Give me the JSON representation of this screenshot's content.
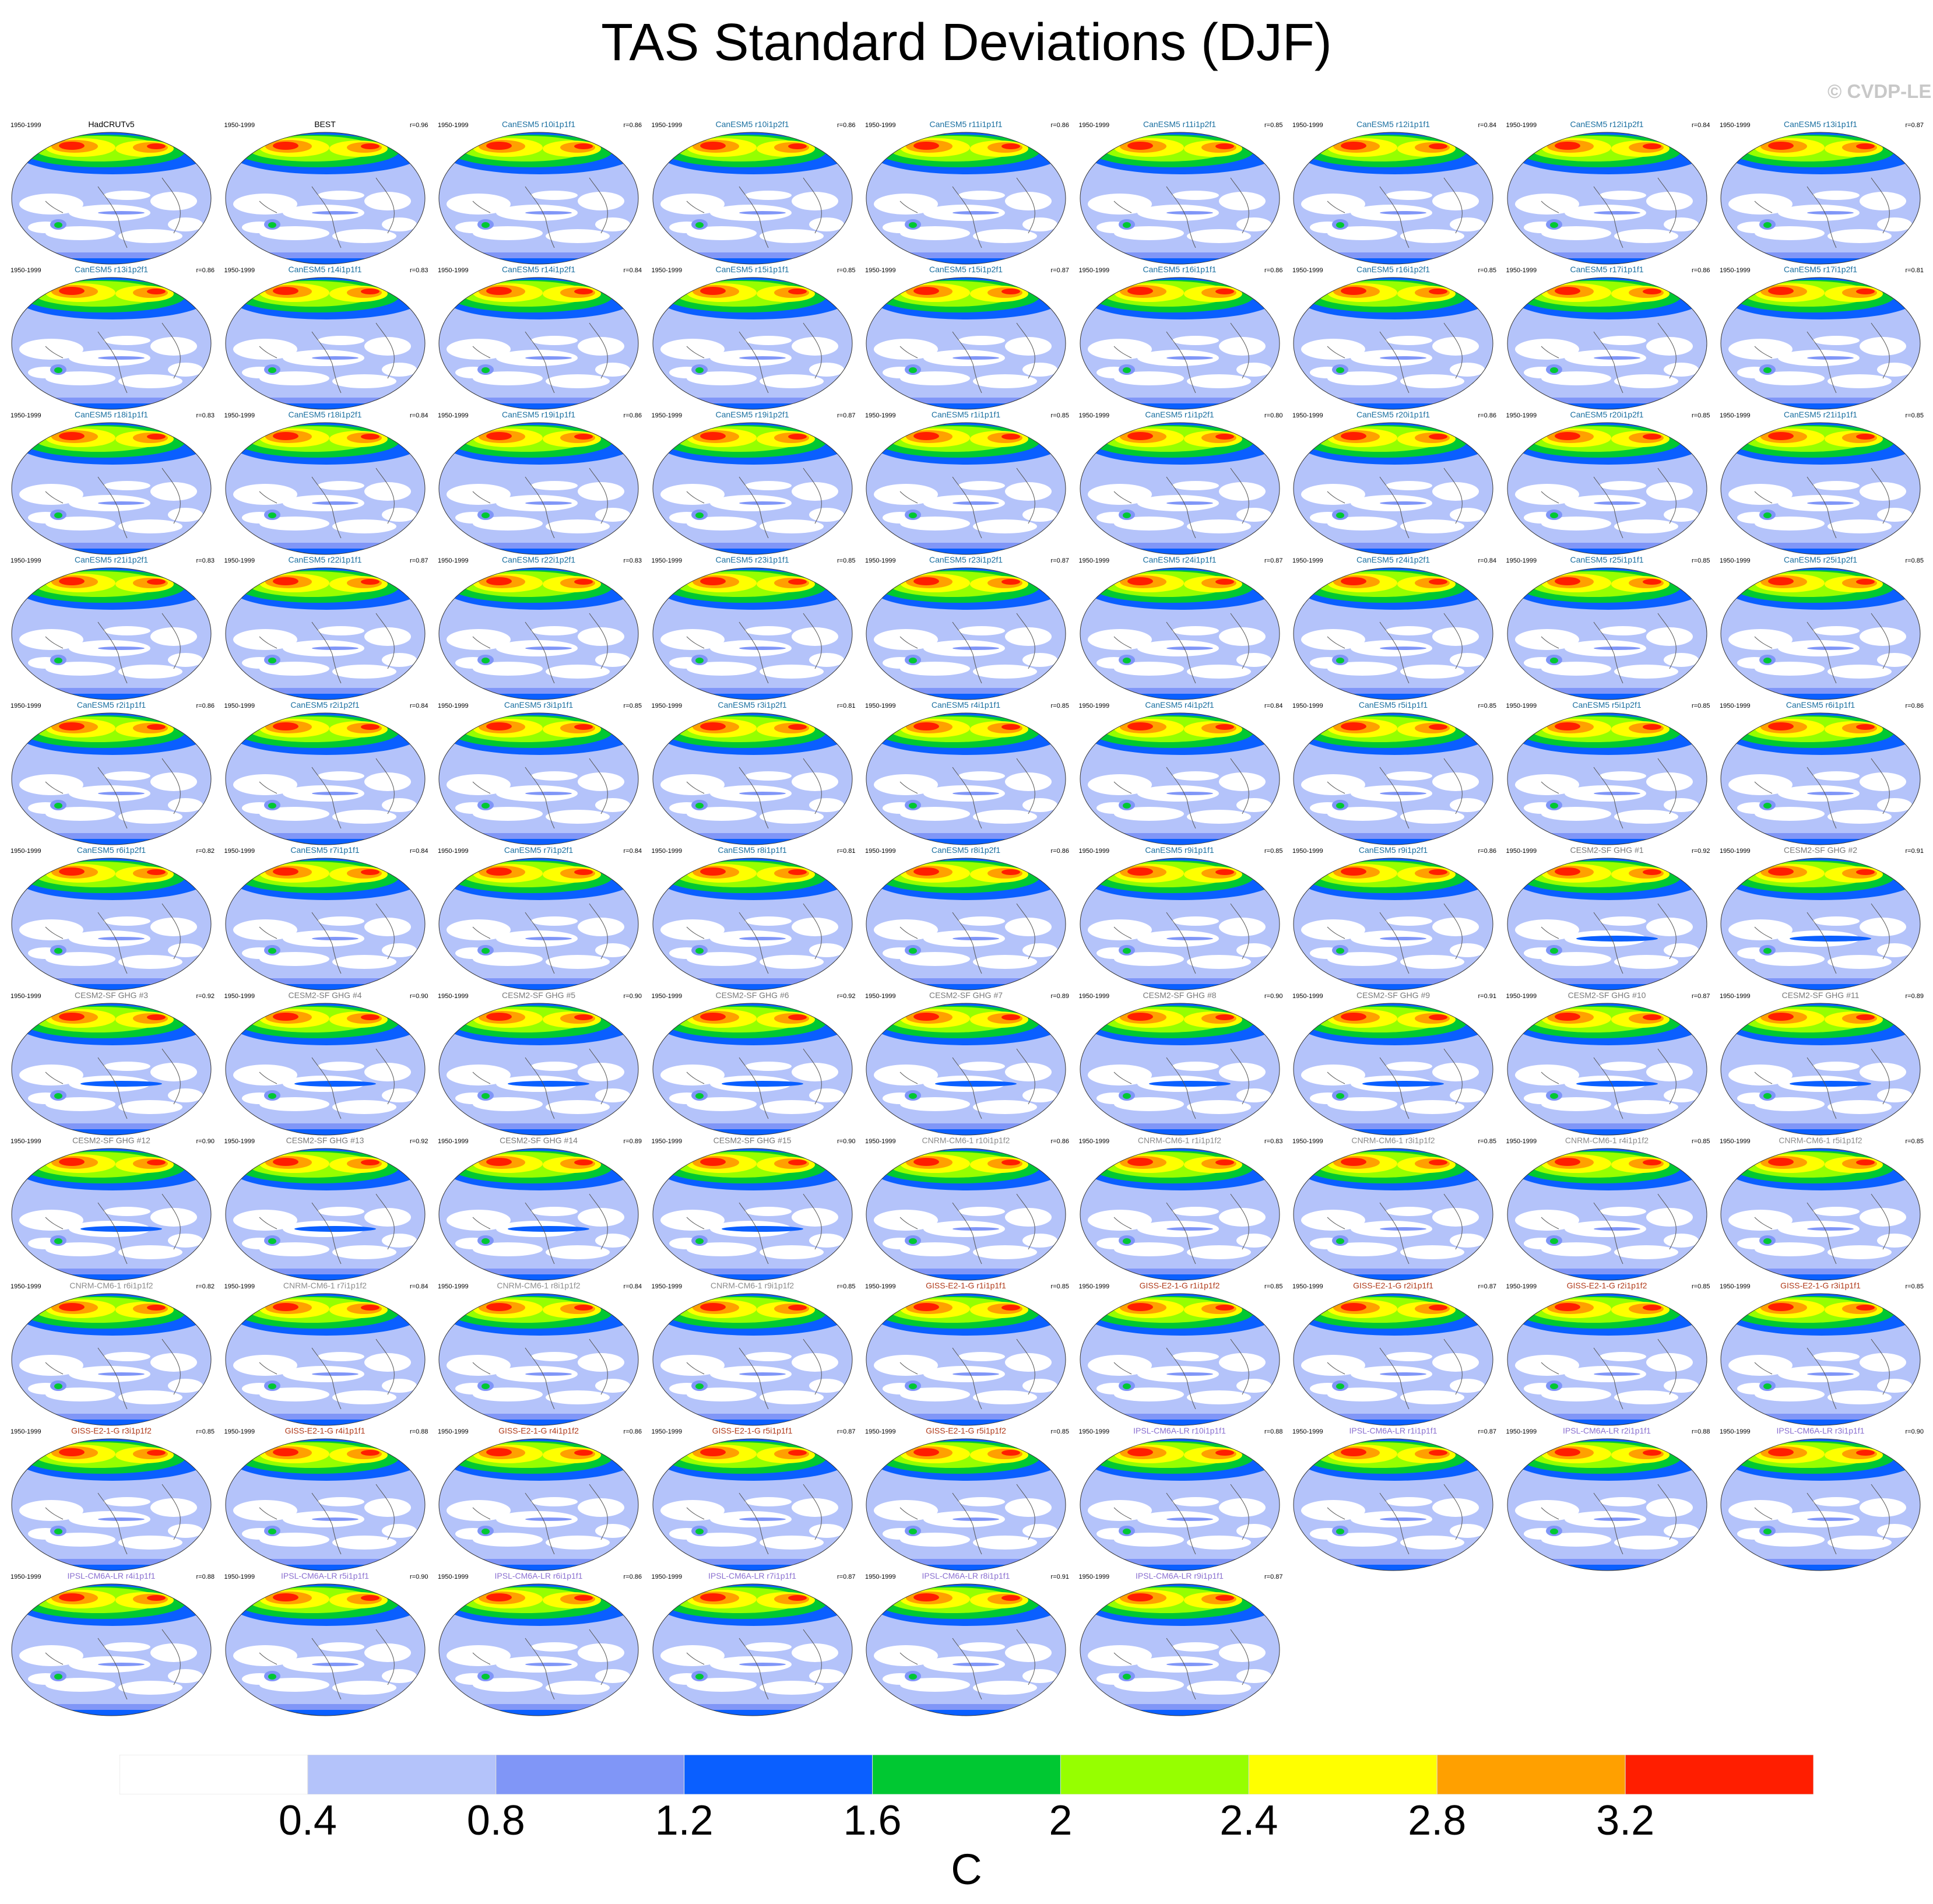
{
  "title": "TAS Standard Deviations (DJF)",
  "copyright": "© CVDP-LE",
  "units": "C",
  "colors": {
    "levels": [
      "#ffffff",
      "#b4c3fa",
      "#8096f7",
      "#0a5fff",
      "#00c832",
      "#96ff00",
      "#ffff00",
      "#ffa000",
      "#ff1e00"
    ],
    "land_outline": "#555555"
  },
  "colorbar": {
    "labels": [
      "0.4",
      "0.8",
      "1.2",
      "1.6",
      "2",
      "2.4",
      "2.8",
      "3.2"
    ]
  },
  "panels": [
    {
      "title": "HadCRUTv5",
      "period": "1950-1999",
      "corr": "",
      "color": "#000000"
    },
    {
      "title": "BEST",
      "period": "1950-1999",
      "corr": "r=0.96",
      "color": "#000000"
    },
    {
      "title": "CanESM5 r10i1p1f1",
      "period": "1950-1999",
      "corr": "r=0.86",
      "color": "#1a6fa0"
    },
    {
      "title": "CanESM5 r10i1p2f1",
      "period": "1950-1999",
      "corr": "r=0.86",
      "color": "#1a6fa0"
    },
    {
      "title": "CanESM5 r11i1p1f1",
      "period": "1950-1999",
      "corr": "r=0.86",
      "color": "#1a6fa0"
    },
    {
      "title": "CanESM5 r11i1p2f1",
      "period": "1950-1999",
      "corr": "r=0.85",
      "color": "#1a6fa0"
    },
    {
      "title": "CanESM5 r12i1p1f1",
      "period": "1950-1999",
      "corr": "r=0.84",
      "color": "#1a6fa0"
    },
    {
      "title": "CanESM5 r12i1p2f1",
      "period": "1950-1999",
      "corr": "r=0.84",
      "color": "#1a6fa0"
    },
    {
      "title": "CanESM5 r13i1p1f1",
      "period": "1950-1999",
      "corr": "r=0.87",
      "color": "#1a6fa0"
    },
    {
      "title": "CanESM5 r13i1p2f1",
      "period": "1950-1999",
      "corr": "r=0.86",
      "color": "#1a6fa0"
    },
    {
      "title": "CanESM5 r14i1p1f1",
      "period": "1950-1999",
      "corr": "r=0.83",
      "color": "#1a6fa0"
    },
    {
      "title": "CanESM5 r14i1p2f1",
      "period": "1950-1999",
      "corr": "r=0.84",
      "color": "#1a6fa0"
    },
    {
      "title": "CanESM5 r15i1p1f1",
      "period": "1950-1999",
      "corr": "r=0.85",
      "color": "#1a6fa0"
    },
    {
      "title": "CanESM5 r15i1p2f1",
      "period": "1950-1999",
      "corr": "r=0.87",
      "color": "#1a6fa0"
    },
    {
      "title": "CanESM5 r16i1p1f1",
      "period": "1950-1999",
      "corr": "r=0.86",
      "color": "#1a6fa0"
    },
    {
      "title": "CanESM5 r16i1p2f1",
      "period": "1950-1999",
      "corr": "r=0.85",
      "color": "#1a6fa0"
    },
    {
      "title": "CanESM5 r17i1p1f1",
      "period": "1950-1999",
      "corr": "r=0.86",
      "color": "#1a6fa0"
    },
    {
      "title": "CanESM5 r17i1p2f1",
      "period": "1950-1999",
      "corr": "r=0.81",
      "color": "#1a6fa0"
    },
    {
      "title": "CanESM5 r18i1p1f1",
      "period": "1950-1999",
      "corr": "r=0.83",
      "color": "#1a6fa0"
    },
    {
      "title": "CanESM5 r18i1p2f1",
      "period": "1950-1999",
      "corr": "r=0.84",
      "color": "#1a6fa0"
    },
    {
      "title": "CanESM5 r19i1p1f1",
      "period": "1950-1999",
      "corr": "r=0.86",
      "color": "#1a6fa0"
    },
    {
      "title": "CanESM5 r19i1p2f1",
      "period": "1950-1999",
      "corr": "r=0.87",
      "color": "#1a6fa0"
    },
    {
      "title": "CanESM5 r1i1p1f1",
      "period": "1950-1999",
      "corr": "r=0.85",
      "color": "#1a6fa0"
    },
    {
      "title": "CanESM5 r1i1p2f1",
      "period": "1950-1999",
      "corr": "r=0.80",
      "color": "#1a6fa0"
    },
    {
      "title": "CanESM5 r20i1p1f1",
      "period": "1950-1999",
      "corr": "r=0.86",
      "color": "#1a6fa0"
    },
    {
      "title": "CanESM5 r20i1p2f1",
      "period": "1950-1999",
      "corr": "r=0.85",
      "color": "#1a6fa0"
    },
    {
      "title": "CanESM5 r21i1p1f1",
      "period": "1950-1999",
      "corr": "r=0.85",
      "color": "#1a6fa0"
    },
    {
      "title": "CanESM5 r21i1p2f1",
      "period": "1950-1999",
      "corr": "r=0.83",
      "color": "#1a6fa0"
    },
    {
      "title": "CanESM5 r22i1p1f1",
      "period": "1950-1999",
      "corr": "r=0.87",
      "color": "#1a6fa0"
    },
    {
      "title": "CanESM5 r22i1p2f1",
      "period": "1950-1999",
      "corr": "r=0.83",
      "color": "#1a6fa0"
    },
    {
      "title": "CanESM5 r23i1p1f1",
      "period": "1950-1999",
      "corr": "r=0.85",
      "color": "#1a6fa0"
    },
    {
      "title": "CanESM5 r23i1p2f1",
      "period": "1950-1999",
      "corr": "r=0.87",
      "color": "#1a6fa0"
    },
    {
      "title": "CanESM5 r24i1p1f1",
      "period": "1950-1999",
      "corr": "r=0.87",
      "color": "#1a6fa0"
    },
    {
      "title": "CanESM5 r24i1p2f1",
      "period": "1950-1999",
      "corr": "r=0.84",
      "color": "#1a6fa0"
    },
    {
      "title": "CanESM5 r25i1p1f1",
      "period": "1950-1999",
      "corr": "r=0.85",
      "color": "#1a6fa0"
    },
    {
      "title": "CanESM5 r25i1p2f1",
      "period": "1950-1999",
      "corr": "r=0.85",
      "color": "#1a6fa0"
    },
    {
      "title": "CanESM5 r2i1p1f1",
      "period": "1950-1999",
      "corr": "r=0.86",
      "color": "#1a6fa0"
    },
    {
      "title": "CanESM5 r2i1p2f1",
      "period": "1950-1999",
      "corr": "r=0.84",
      "color": "#1a6fa0"
    },
    {
      "title": "CanESM5 r3i1p1f1",
      "period": "1950-1999",
      "corr": "r=0.85",
      "color": "#1a6fa0"
    },
    {
      "title": "CanESM5 r3i1p2f1",
      "period": "1950-1999",
      "corr": "r=0.81",
      "color": "#1a6fa0"
    },
    {
      "title": "CanESM5 r4i1p1f1",
      "period": "1950-1999",
      "corr": "r=0.85",
      "color": "#1a6fa0"
    },
    {
      "title": "CanESM5 r4i1p2f1",
      "period": "1950-1999",
      "corr": "r=0.84",
      "color": "#1a6fa0"
    },
    {
      "title": "CanESM5 r5i1p1f1",
      "period": "1950-1999",
      "corr": "r=0.85",
      "color": "#1a6fa0"
    },
    {
      "title": "CanESM5 r5i1p2f1",
      "period": "1950-1999",
      "corr": "r=0.85",
      "color": "#1a6fa0"
    },
    {
      "title": "CanESM5 r6i1p1f1",
      "period": "1950-1999",
      "corr": "r=0.86",
      "color": "#1a6fa0"
    },
    {
      "title": "CanESM5 r6i1p2f1",
      "period": "1950-1999",
      "corr": "r=0.82",
      "color": "#1a6fa0"
    },
    {
      "title": "CanESM5 r7i1p1f1",
      "period": "1950-1999",
      "corr": "r=0.84",
      "color": "#1a6fa0"
    },
    {
      "title": "CanESM5 r7i1p2f1",
      "period": "1950-1999",
      "corr": "r=0.84",
      "color": "#1a6fa0"
    },
    {
      "title": "CanESM5 r8i1p1f1",
      "period": "1950-1999",
      "corr": "r=0.81",
      "color": "#1a6fa0"
    },
    {
      "title": "CanESM5 r8i1p2f1",
      "period": "1950-1999",
      "corr": "r=0.86",
      "color": "#1a6fa0"
    },
    {
      "title": "CanESM5 r9i1p1f1",
      "period": "1950-1999",
      "corr": "r=0.85",
      "color": "#1a6fa0"
    },
    {
      "title": "CanESM5 r9i1p2f1",
      "period": "1950-1999",
      "corr": "r=0.86",
      "color": "#1a6fa0"
    },
    {
      "title": "CESM2-SF GHG #1",
      "period": "1950-1999",
      "corr": "r=0.92",
      "color": "#7a7a7a"
    },
    {
      "title": "CESM2-SF GHG #2",
      "period": "1950-1999",
      "corr": "r=0.91",
      "color": "#7a7a7a"
    },
    {
      "title": "CESM2-SF GHG #3",
      "period": "1950-1999",
      "corr": "r=0.92",
      "color": "#7a7a7a"
    },
    {
      "title": "CESM2-SF GHG #4",
      "period": "1950-1999",
      "corr": "r=0.90",
      "color": "#7a7a7a"
    },
    {
      "title": "CESM2-SF GHG #5",
      "period": "1950-1999",
      "corr": "r=0.90",
      "color": "#7a7a7a"
    },
    {
      "title": "CESM2-SF GHG #6",
      "period": "1950-1999",
      "corr": "r=0.92",
      "color": "#7a7a7a"
    },
    {
      "title": "CESM2-SF GHG #7",
      "period": "1950-1999",
      "corr": "r=0.89",
      "color": "#7a7a7a"
    },
    {
      "title": "CESM2-SF GHG #8",
      "period": "1950-1999",
      "corr": "r=0.90",
      "color": "#7a7a7a"
    },
    {
      "title": "CESM2-SF GHG #9",
      "period": "1950-1999",
      "corr": "r=0.91",
      "color": "#7a7a7a"
    },
    {
      "title": "CESM2-SF GHG #10",
      "period": "1950-1999",
      "corr": "r=0.87",
      "color": "#7a7a7a"
    },
    {
      "title": "CESM2-SF GHG #11",
      "period": "1950-1999",
      "corr": "r=0.89",
      "color": "#7a7a7a"
    },
    {
      "title": "CESM2-SF GHG #12",
      "period": "1950-1999",
      "corr": "r=0.90",
      "color": "#7a7a7a"
    },
    {
      "title": "CESM2-SF GHG #13",
      "period": "1950-1999",
      "corr": "r=0.92",
      "color": "#7a7a7a"
    },
    {
      "title": "CESM2-SF GHG #14",
      "period": "1950-1999",
      "corr": "r=0.89",
      "color": "#7a7a7a"
    },
    {
      "title": "CESM2-SF GHG #15",
      "period": "1950-1999",
      "corr": "r=0.90",
      "color": "#7a7a7a"
    },
    {
      "title": "CNRM-CM6-1 r10i1p1f2",
      "period": "1950-1999",
      "corr": "r=0.86",
      "color": "#8c8c8c"
    },
    {
      "title": "CNRM-CM6-1 r1i1p1f2",
      "period": "1950-1999",
      "corr": "r=0.83",
      "color": "#8c8c8c"
    },
    {
      "title": "CNRM-CM6-1 r3i1p1f2",
      "period": "1950-1999",
      "corr": "r=0.85",
      "color": "#8c8c8c"
    },
    {
      "title": "CNRM-CM6-1 r4i1p1f2",
      "period": "1950-1999",
      "corr": "r=0.85",
      "color": "#8c8c8c"
    },
    {
      "title": "CNRM-CM6-1 r5i1p1f2",
      "period": "1950-1999",
      "corr": "r=0.85",
      "color": "#8c8c8c"
    },
    {
      "title": "CNRM-CM6-1 r6i1p1f2",
      "period": "1950-1999",
      "corr": "r=0.82",
      "color": "#8c8c8c"
    },
    {
      "title": "CNRM-CM6-1 r7i1p1f2",
      "period": "1950-1999",
      "corr": "r=0.84",
      "color": "#8c8c8c"
    },
    {
      "title": "CNRM-CM6-1 r8i1p1f2",
      "period": "1950-1999",
      "corr": "r=0.84",
      "color": "#8c8c8c"
    },
    {
      "title": "CNRM-CM6-1 r9i1p1f2",
      "period": "1950-1999",
      "corr": "r=0.85",
      "color": "#8c8c8c"
    },
    {
      "title": "GISS-E2-1-G r1i1p1f1",
      "period": "1950-1999",
      "corr": "r=0.85",
      "color": "#b03a1a"
    },
    {
      "title": "GISS-E2-1-G r1i1p1f2",
      "period": "1950-1999",
      "corr": "r=0.85",
      "color": "#b03a1a"
    },
    {
      "title": "GISS-E2-1-G r2i1p1f1",
      "period": "1950-1999",
      "corr": "r=0.87",
      "color": "#b03a1a"
    },
    {
      "title": "GISS-E2-1-G r2i1p1f2",
      "period": "1950-1999",
      "corr": "r=0.85",
      "color": "#b03a1a"
    },
    {
      "title": "GISS-E2-1-G r3i1p1f1",
      "period": "1950-1999",
      "corr": "r=0.85",
      "color": "#b03a1a"
    },
    {
      "title": "GISS-E2-1-G r3i1p1f2",
      "period": "1950-1999",
      "corr": "r=0.85",
      "color": "#b03a1a"
    },
    {
      "title": "GISS-E2-1-G r4i1p1f1",
      "period": "1950-1999",
      "corr": "r=0.88",
      "color": "#b03a1a"
    },
    {
      "title": "GISS-E2-1-G r4i1p1f2",
      "period": "1950-1999",
      "corr": "r=0.86",
      "color": "#b03a1a"
    },
    {
      "title": "GISS-E2-1-G r5i1p1f1",
      "period": "1950-1999",
      "corr": "r=0.87",
      "color": "#b03a1a"
    },
    {
      "title": "GISS-E2-1-G r5i1p1f2",
      "period": "1950-1999",
      "corr": "r=0.85",
      "color": "#b03a1a"
    },
    {
      "title": "IPSL-CM6A-LR r10i1p1f1",
      "period": "1950-1999",
      "corr": "r=0.88",
      "color": "#8a6fd0"
    },
    {
      "title": "IPSL-CM6A-LR r1i1p1f1",
      "period": "1950-1999",
      "corr": "r=0.87",
      "color": "#8a6fd0"
    },
    {
      "title": "IPSL-CM6A-LR r2i1p1f1",
      "period": "1950-1999",
      "corr": "r=0.88",
      "color": "#8a6fd0"
    },
    {
      "title": "IPSL-CM6A-LR r3i1p1f1",
      "period": "1950-1999",
      "corr": "r=0.90",
      "color": "#8a6fd0"
    },
    {
      "title": "IPSL-CM6A-LR r4i1p1f1",
      "period": "1950-1999",
      "corr": "r=0.88",
      "color": "#8a6fd0"
    },
    {
      "title": "IPSL-CM6A-LR r5i1p1f1",
      "period": "1950-1999",
      "corr": "r=0.90",
      "color": "#8a6fd0"
    },
    {
      "title": "IPSL-CM6A-LR r6i1p1f1",
      "period": "1950-1999",
      "corr": "r=0.86",
      "color": "#8a6fd0"
    },
    {
      "title": "IPSL-CM6A-LR r7i1p1f1",
      "period": "1950-1999",
      "corr": "r=0.87",
      "color": "#8a6fd0"
    },
    {
      "title": "IPSL-CM6A-LR r8i1p1f1",
      "period": "1950-1999",
      "corr": "r=0.91",
      "color": "#8a6fd0"
    },
    {
      "title": "IPSL-CM6A-LR r9i1p1f1",
      "period": "1950-1999",
      "corr": "r=0.87",
      "color": "#8a6fd0"
    }
  ]
}
